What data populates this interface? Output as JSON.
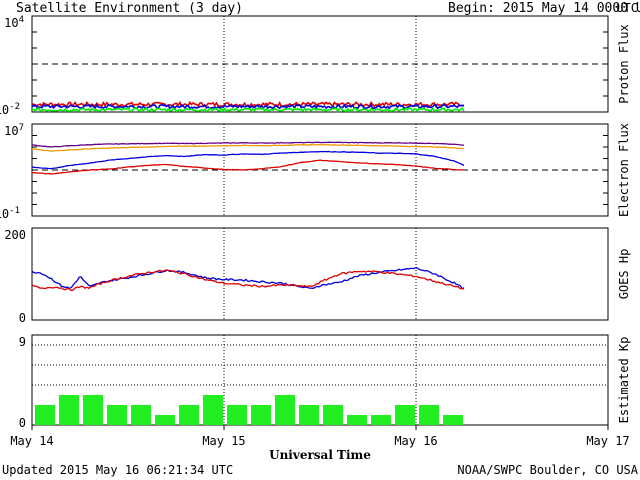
{
  "header": {
    "title": "Satellite Environment (3 day)",
    "begin_label": "Begin:",
    "begin_date": "2015 May 14 0000 UTC"
  },
  "footer": {
    "updated": "Updated 2015 May 16 06:21:34 UTC",
    "credit": "NOAA/SWPC Boulder, CO USA"
  },
  "colors": {
    "red": "#dd0000",
    "blue": "#0000dd",
    "green": "#00ee00",
    "orange": "#ee9900",
    "purple": "#660088",
    "kp_bar": "#22ee22"
  },
  "chart_data": [
    {
      "type": "line",
      "panel": "proton",
      "ylabel": "Proton Flux",
      "yscale": "log",
      "ylim_exp": [
        -2,
        4
      ],
      "ytick_labels": [
        {
          "base": "10",
          "exp": "4"
        },
        {
          "base": "10",
          "exp": "-2"
        }
      ],
      "threshold": 10,
      "series": [
        {
          "color": "red",
          "level": 0.03,
          "noise": 0.25
        },
        {
          "color": "blue",
          "level": 0.022,
          "noise": 0.22
        },
        {
          "color": "green",
          "level": 0.014,
          "noise": 0.2
        }
      ],
      "x": [
        0,
        0.5,
        1,
        1.5,
        2,
        2.25
      ]
    },
    {
      "type": "line",
      "panel": "electron",
      "ylabel": "Electron Flux",
      "yscale": "log",
      "ylim_exp": [
        -1,
        7
      ],
      "ytick_labels": [
        {
          "base": "10",
          "exp": "7"
        },
        {
          "base": "10",
          "exp": "-1"
        }
      ],
      "threshold": 1000,
      "x": [
        0,
        0.1,
        0.2,
        0.3,
        0.4,
        0.5,
        0.6,
        0.7,
        0.8,
        0.9,
        1.0,
        1.1,
        1.2,
        1.3,
        1.4,
        1.5,
        1.6,
        1.7,
        1.8,
        1.9,
        2.0,
        2.1,
        2.2,
        2.25
      ],
      "series": [
        {
          "color": "purple",
          "values": [
            150000,
            100000,
            130000,
            160000,
            180000,
            190000,
            200000,
            210000,
            200000,
            210000,
            220000,
            230000,
            220000,
            230000,
            240000,
            250000,
            250000,
            240000,
            230000,
            230000,
            220000,
            200000,
            170000,
            140000
          ]
        },
        {
          "color": "orange",
          "values": [
            70000,
            45000,
            55000,
            70000,
            80000,
            90000,
            100000,
            110000,
            120000,
            120000,
            130000,
            140000,
            130000,
            140000,
            150000,
            160000,
            150000,
            140000,
            130000,
            120000,
            110000,
            100000,
            85000,
            70000
          ]
        },
        {
          "color": "blue",
          "values": [
            1800,
            1300,
            2500,
            4000,
            7000,
            10000,
            14000,
            18000,
            15000,
            22000,
            20000,
            25000,
            23000,
            30000,
            35000,
            40000,
            38000,
            35000,
            30000,
            28000,
            25000,
            15000,
            6000,
            2500
          ]
        },
        {
          "color": "red",
          "values": [
            600,
            450,
            700,
            1000,
            1200,
            1800,
            2500,
            3000,
            2000,
            1500,
            1100,
            1000,
            1300,
            2000,
            4500,
            7000,
            5500,
            4000,
            3500,
            3000,
            2200,
            1400,
            1100,
            1000
          ]
        }
      ]
    },
    {
      "type": "line",
      "panel": "hp",
      "ylabel": "GOES Hp",
      "ylim": [
        0,
        200
      ],
      "ytick_labels": [
        "200",
        "0"
      ],
      "x": [
        0,
        0.05,
        0.1,
        0.15,
        0.2,
        0.25,
        0.3,
        0.35,
        0.4,
        0.5,
        0.6,
        0.7,
        0.8,
        0.9,
        1.0,
        1.1,
        1.2,
        1.3,
        1.4,
        1.45,
        1.5,
        1.6,
        1.7,
        1.8,
        1.9,
        2.0,
        2.1,
        2.2,
        2.25
      ],
      "series": [
        {
          "color": "blue",
          "values": [
            105,
            102,
            90,
            75,
            68,
            95,
            72,
            80,
            85,
            92,
            100,
            108,
            103,
            92,
            88,
            87,
            83,
            80,
            72,
            68,
            75,
            82,
            96,
            103,
            108,
            113,
            100,
            80,
            68
          ]
        },
        {
          "color": "red",
          "values": [
            75,
            68,
            72,
            70,
            65,
            72,
            70,
            78,
            85,
            95,
            103,
            108,
            100,
            88,
            80,
            76,
            73,
            76,
            74,
            72,
            82,
            100,
            106,
            105,
            100,
            95,
            84,
            73,
            67
          ]
        }
      ]
    },
    {
      "type": "bar",
      "panel": "kp",
      "ylabel": "Estimated Kp",
      "ylim": [
        0,
        9
      ],
      "ytick_labels": [
        "9",
        "0"
      ],
      "gridlines": [
        4,
        6,
        8,
        9
      ],
      "bar_width_days": 0.125,
      "values": [
        2,
        3,
        3,
        2,
        2,
        1,
        2,
        3,
        2,
        2,
        3,
        2,
        2,
        1,
        1,
        2,
        2,
        1
      ]
    }
  ],
  "x_axis": {
    "xlabel": "Universal Time",
    "ticks": [
      "May 14",
      "May 15",
      "May 16",
      "May 17"
    ],
    "days": 3,
    "day_markers": [
      1,
      2
    ]
  },
  "right_label": "UTC"
}
